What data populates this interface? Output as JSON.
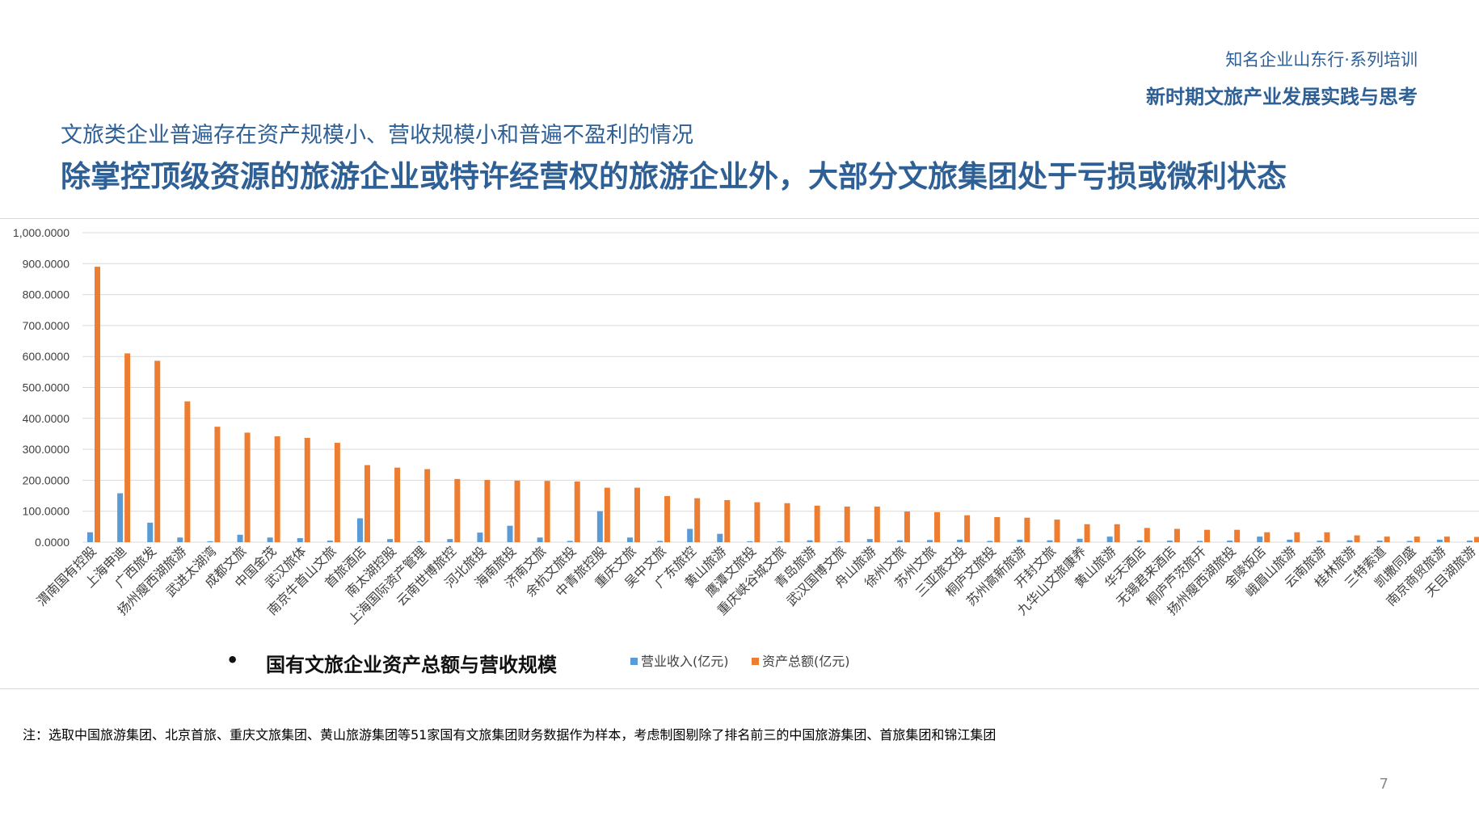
{
  "header": {
    "top_right_line1": "知名企业山东行·系列培训",
    "top_right_line2": "新时期文旅产业发展实践与思考"
  },
  "titles": {
    "subtitle": "文旅类企业普遍存在资产规模小、营收规模小和普遍不盈利的情况",
    "main": "除掌控顶级资源的旅游企业或特许经营权的旅游企业外，大部分文旅集团处于亏损或微利状态"
  },
  "caption": {
    "bullet": "•",
    "text": "国有文旅企业资产总额与营收规模"
  },
  "note": "注：选取中国旅游集团、北京首旅、重庆文旅集团、黄山旅游集团等51家国有文旅集团财务数据作为样本，考虑制图剔除了排名前三的中国旅游集团、首旅集团和锦江集团",
  "page_number": "7",
  "colors": {
    "revenue": "#5b9bd5",
    "assets": "#ed7d31",
    "title": "#2e5f95",
    "grid": "#d9d9d9"
  },
  "chart_data": {
    "type": "bar",
    "title": "",
    "xlabel": "",
    "ylabel": "",
    "ylim": [
      0,
      1000
    ],
    "y_ticks": [
      "0.0000",
      "100.0000",
      "200.0000",
      "300.0000",
      "400.0000",
      "500.0000",
      "600.0000",
      "700.0000",
      "800.0000",
      "900.0000",
      "1,000.0000"
    ],
    "grid": true,
    "legend_position": "bottom",
    "categories": [
      "渭南国有控股",
      "上海申迪",
      "广西旅发",
      "扬州瘦西湖旅游",
      "武进太湖湾",
      "成都文旅",
      "中国金茂",
      "武汉旅体",
      "南京牛首山文旅",
      "首旅酒店",
      "南太湖控股",
      "上海国际资产管理",
      "云南世博旅控",
      "河北旅投",
      "海南旅投",
      "济南文旅",
      "余杭文旅投",
      "中青旅控股",
      "重庆文旅",
      "吴中文旅",
      "广东旅控",
      "黄山旅游",
      "鹰潭文旅投",
      "重庆峡谷城文旅",
      "青岛旅游",
      "武汉国博文旅",
      "舟山旅游",
      "徐州文旅",
      "苏州文旅",
      "三亚旅文投",
      "桐庐文旅投",
      "苏州高新旅游",
      "开封文旅",
      "九华山文旅康养",
      "黄山旅游",
      "华天酒店",
      "无锡君来酒店",
      "桐庐芦茨旅开",
      "扬州瘦西湖旅投",
      "金陵饭店",
      "峨眉山旅游",
      "云南旅游",
      "桂林旅游",
      "三特索道",
      "凯撒同盛",
      "南京商贸旅游",
      "天目湖旅游"
    ],
    "series": [
      {
        "name": "营业收入(亿元)",
        "values": [
          32,
          158,
          63,
          15,
          3,
          24,
          15,
          13,
          5,
          77,
          10,
          3,
          10,
          31,
          53,
          15,
          4,
          100,
          15,
          4,
          43,
          27,
          3,
          3,
          6,
          3,
          10,
          6,
          7,
          8,
          4,
          8,
          6,
          11,
          18,
          6,
          5,
          4,
          5,
          18,
          8,
          5,
          6,
          5,
          4,
          8,
          5
        ]
      },
      {
        "name": "资产总额(亿元)",
        "values": [
          890,
          610,
          586,
          455,
          373,
          354,
          342,
          337,
          321,
          249,
          241,
          236,
          204,
          201,
          199,
          198,
          196,
          176,
          176,
          149,
          142,
          136,
          129,
          126,
          118,
          115,
          115,
          99,
          97,
          87,
          81,
          79,
          73,
          58,
          58,
          46,
          43,
          40,
          40,
          32,
          32,
          32,
          22,
          18,
          18,
          18,
          17
        ]
      }
    ]
  }
}
